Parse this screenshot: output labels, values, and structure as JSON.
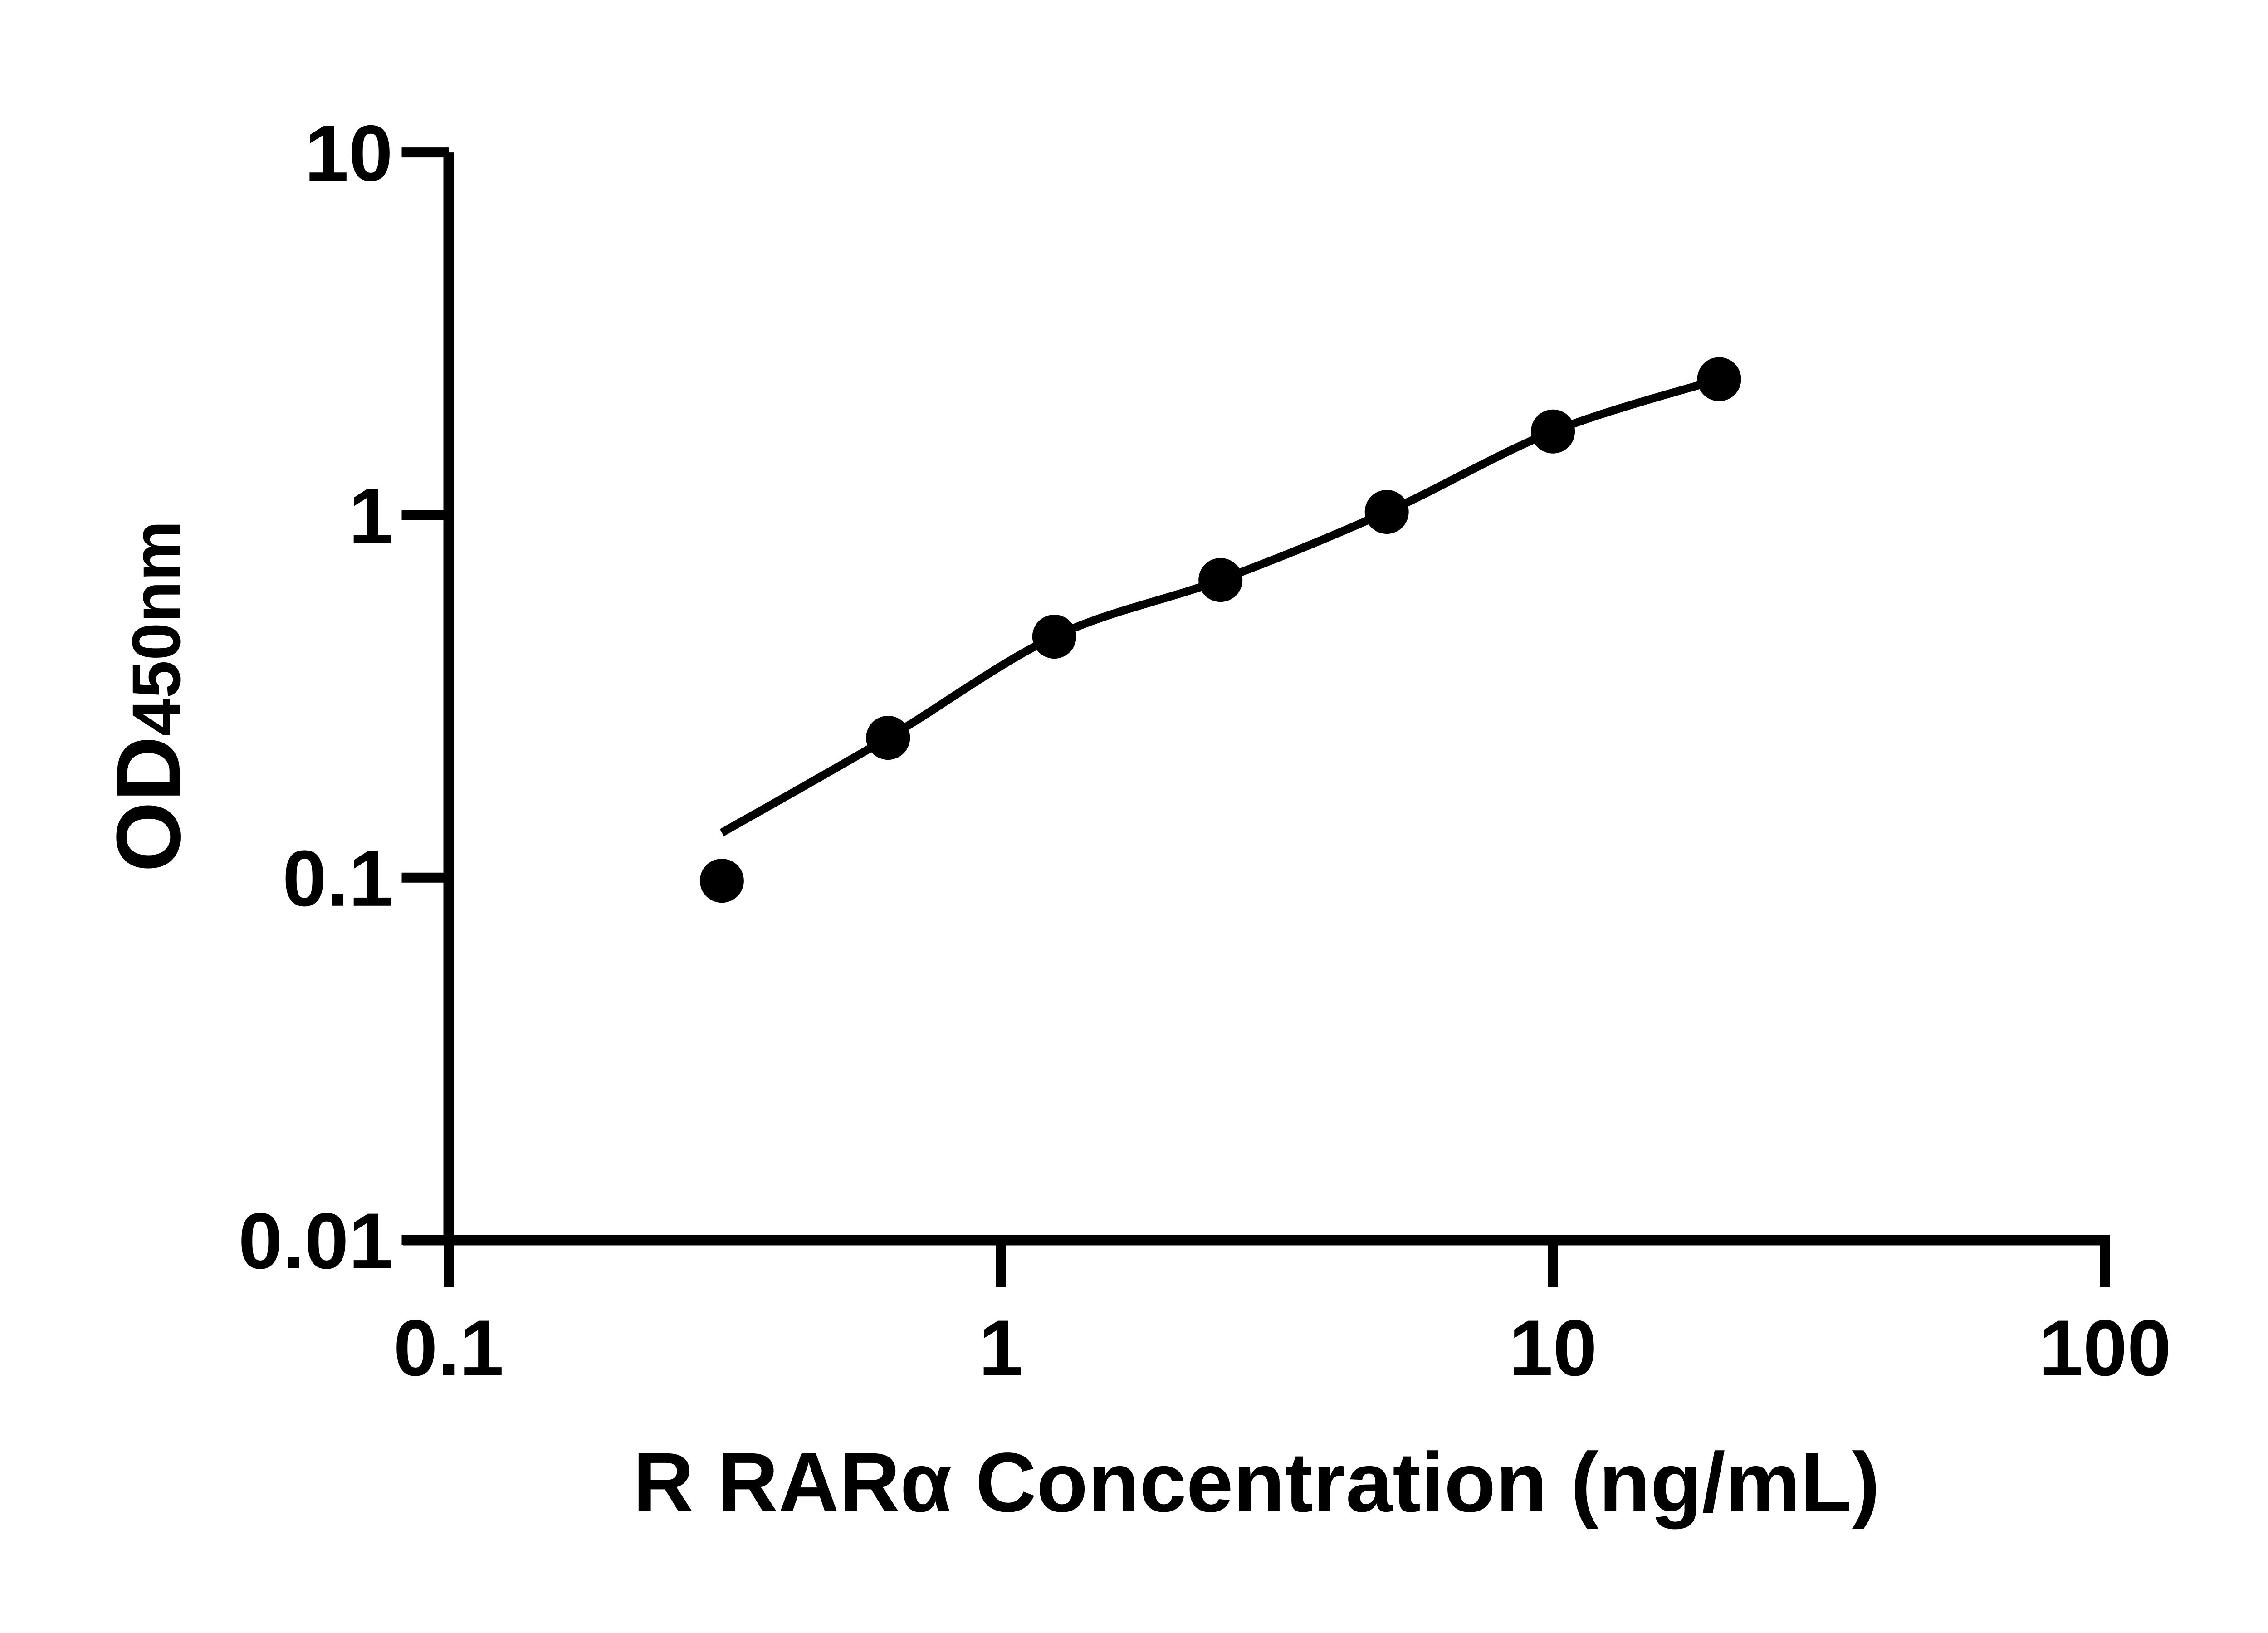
{
  "figure": {
    "background_color": "#ffffff",
    "ink_color": "#000000"
  },
  "chart_data": {
    "type": "scatter",
    "title": "",
    "xlabel": "R RARα Concentration (ng/mL)",
    "ylabel_main": "OD",
    "ylabel_sub": "450nm",
    "x_scale": "log",
    "y_scale": "log",
    "xlim": [
      0.1,
      100
    ],
    "ylim": [
      0.01,
      10
    ],
    "grid": "off",
    "legend": "none",
    "x_ticks": [
      {
        "value": 0.1,
        "label": "0.1"
      },
      {
        "value": 1,
        "label": "1"
      },
      {
        "value": 10,
        "label": "10"
      },
      {
        "value": 100,
        "label": "100"
      }
    ],
    "y_ticks": [
      {
        "value": 10,
        "label": "10"
      },
      {
        "value": 1,
        "label": "1"
      },
      {
        "value": 0.1,
        "label": "0.1"
      },
      {
        "value": 0.01,
        "label": "0.01"
      }
    ],
    "series": [
      {
        "name": "standard-points",
        "kind": "scatter",
        "marker": "filled-circle",
        "color": "#000000",
        "x": [
          0.3125,
          0.625,
          1.25,
          2.5,
          5,
          10,
          20
        ],
        "y": [
          0.098,
          0.243,
          0.462,
          0.662,
          1.02,
          1.7,
          2.37
        ]
      },
      {
        "name": "fit-curve",
        "kind": "line",
        "color": "#000000",
        "x": [
          0.3125,
          0.625,
          1.25,
          2.5,
          5,
          10,
          20
        ],
        "y": [
          0.133,
          0.243,
          0.462,
          0.662,
          1.02,
          1.7,
          2.37
        ]
      }
    ]
  }
}
